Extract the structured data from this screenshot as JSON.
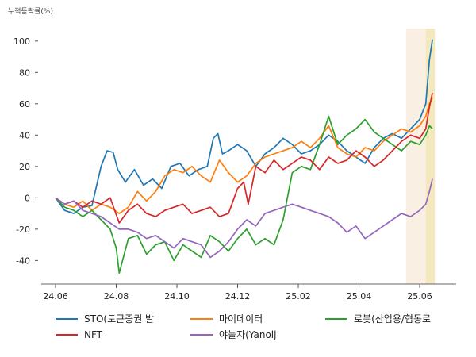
{
  "chart_data": {
    "type": "line",
    "ylabel": "누적등락률(%)",
    "ylim": [
      -55,
      108
    ],
    "yticks": [
      -40,
      -20,
      0,
      20,
      40,
      60,
      80,
      100
    ],
    "xlim": [
      0,
      12.6
    ],
    "xticks": [
      {
        "pos": 0,
        "label": "24.06"
      },
      {
        "pos": 2,
        "label": "24.08"
      },
      {
        "pos": 4,
        "label": "24.10"
      },
      {
        "pos": 6,
        "label": "24.12"
      },
      {
        "pos": 8,
        "label": "25.02"
      },
      {
        "pos": 10,
        "label": "25.04"
      },
      {
        "pos": 12,
        "label": "25.06"
      }
    ],
    "highlights": [
      {
        "from": 11.55,
        "to": 12.5,
        "color": "#f5dcc0",
        "opacity": 0.45
      },
      {
        "from": 12.2,
        "to": 12.5,
        "color": "#efe3a0",
        "opacity": 0.55
      }
    ],
    "series": [
      {
        "name": "STO(토큰증권 발",
        "color": "#1f77b4",
        "x": [
          0,
          0.3,
          0.6,
          0.9,
          1.2,
          1.5,
          1.7,
          1.9,
          2.05,
          2.3,
          2.6,
          2.9,
          3.2,
          3.5,
          3.8,
          4.1,
          4.4,
          4.7,
          5.0,
          5.2,
          5.35,
          5.5,
          5.7,
          6.0,
          6.3,
          6.6,
          6.9,
          7.2,
          7.5,
          7.8,
          8.1,
          8.4,
          8.7,
          9.0,
          9.3,
          9.6,
          9.9,
          10.2,
          10.5,
          10.8,
          11.1,
          11.4,
          11.7,
          12.0,
          12.2,
          12.32,
          12.42
        ],
        "y": [
          0,
          -8,
          -10,
          -6,
          -5,
          20,
          30,
          29,
          18,
          10,
          18,
          8,
          12,
          6,
          20,
          22,
          14,
          18,
          20,
          38,
          41,
          28,
          30,
          34,
          30,
          20,
          28,
          32,
          38,
          34,
          28,
          30,
          34,
          40,
          36,
          30,
          26,
          22,
          32,
          38,
          41,
          38,
          44,
          50,
          60,
          88,
          101
        ]
      },
      {
        "name": "마이데이터",
        "color": "#ff7f0e",
        "x": [
          0,
          0.3,
          0.6,
          0.9,
          1.2,
          1.5,
          1.8,
          2.1,
          2.4,
          2.7,
          3.0,
          3.3,
          3.6,
          3.9,
          4.2,
          4.5,
          4.8,
          5.1,
          5.4,
          5.7,
          6.0,
          6.3,
          6.6,
          6.9,
          7.2,
          7.5,
          7.8,
          8.1,
          8.4,
          8.7,
          9.0,
          9.3,
          9.6,
          9.9,
          10.2,
          10.5,
          10.8,
          11.1,
          11.4,
          11.7,
          12.0,
          12.2,
          12.32,
          12.42
        ],
        "y": [
          0,
          -4,
          -6,
          -2,
          -8,
          -4,
          -6,
          -10,
          -6,
          4,
          -2,
          4,
          14,
          18,
          16,
          20,
          14,
          10,
          24,
          16,
          10,
          14,
          22,
          26,
          28,
          30,
          32,
          36,
          32,
          38,
          46,
          32,
          28,
          26,
          32,
          30,
          36,
          40,
          44,
          42,
          46,
          52,
          60,
          64
        ]
      },
      {
        "name": "로봇(산업용/협동로",
        "color": "#2ca02c",
        "x": [
          0,
          0.3,
          0.6,
          0.9,
          1.2,
          1.5,
          1.8,
          2.0,
          2.1,
          2.4,
          2.7,
          3.0,
          3.3,
          3.6,
          3.9,
          4.2,
          4.5,
          4.8,
          5.1,
          5.4,
          5.7,
          6.0,
          6.3,
          6.6,
          6.9,
          7.2,
          7.5,
          7.8,
          8.1,
          8.4,
          8.7,
          9.0,
          9.3,
          9.6,
          9.9,
          10.2,
          10.5,
          10.8,
          11.1,
          11.4,
          11.7,
          12.0,
          12.2,
          12.32,
          12.42
        ],
        "y": [
          0,
          -6,
          -8,
          -12,
          -8,
          -14,
          -20,
          -32,
          -48,
          -26,
          -24,
          -36,
          -30,
          -28,
          -40,
          -30,
          -34,
          -38,
          -24,
          -28,
          -34,
          -26,
          -20,
          -30,
          -26,
          -30,
          -14,
          16,
          20,
          18,
          34,
          52,
          34,
          40,
          44,
          50,
          42,
          38,
          34,
          30,
          36,
          34,
          40,
          46,
          44
        ]
      },
      {
        "name": "NFT",
        "color": "#d62728",
        "x": [
          0,
          0.3,
          0.6,
          0.9,
          1.2,
          1.5,
          1.8,
          2.1,
          2.4,
          2.7,
          3.0,
          3.3,
          3.6,
          3.9,
          4.2,
          4.5,
          4.8,
          5.1,
          5.4,
          5.7,
          6.0,
          6.2,
          6.35,
          6.6,
          6.9,
          7.2,
          7.5,
          7.8,
          8.1,
          8.4,
          8.7,
          9.0,
          9.3,
          9.6,
          9.9,
          10.2,
          10.5,
          10.8,
          11.1,
          11.4,
          11.7,
          12.0,
          12.2,
          12.32,
          12.42
        ],
        "y": [
          0,
          -4,
          -2,
          -6,
          -2,
          -4,
          0,
          -16,
          -8,
          -4,
          -10,
          -12,
          -8,
          -6,
          -4,
          -10,
          -8,
          -6,
          -12,
          -10,
          6,
          10,
          -4,
          20,
          16,
          24,
          18,
          22,
          26,
          24,
          18,
          26,
          22,
          24,
          30,
          26,
          20,
          24,
          30,
          36,
          40,
          38,
          44,
          58,
          67
        ]
      },
      {
        "name": "야놀자(Yanolj",
        "color": "#9467bd",
        "x": [
          0,
          0.3,
          0.6,
          0.9,
          1.2,
          1.5,
          1.8,
          2.1,
          2.4,
          2.7,
          3.0,
          3.3,
          3.6,
          3.9,
          4.2,
          4.5,
          4.8,
          5.1,
          5.4,
          5.7,
          6.0,
          6.3,
          6.6,
          6.9,
          7.2,
          7.5,
          7.8,
          8.1,
          8.4,
          8.7,
          9.0,
          9.3,
          9.6,
          9.9,
          10.2,
          10.5,
          10.8,
          11.1,
          11.4,
          11.7,
          12.0,
          12.2,
          12.32,
          12.42
        ],
        "y": [
          0,
          -4,
          -2,
          -8,
          -10,
          -12,
          -16,
          -20,
          -20,
          -22,
          -26,
          -24,
          -28,
          -32,
          -26,
          -28,
          -30,
          -38,
          -34,
          -28,
          -20,
          -14,
          -18,
          -10,
          -8,
          -6,
          -4,
          -6,
          -8,
          -10,
          -12,
          -16,
          -22,
          -18,
          -26,
          -22,
          -18,
          -14,
          -10,
          -12,
          -8,
          -4,
          4,
          12
        ]
      }
    ]
  }
}
